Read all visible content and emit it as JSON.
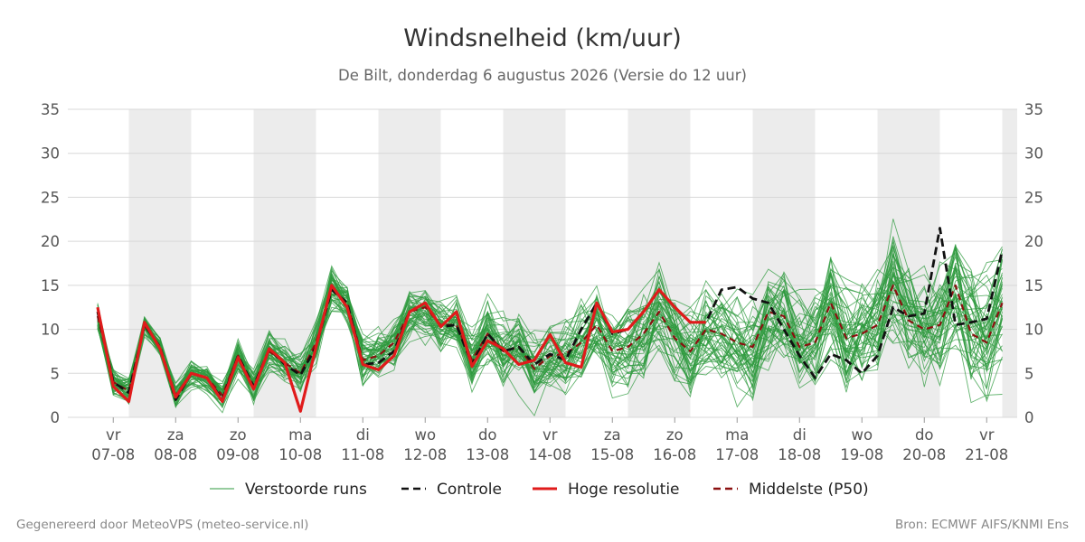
{
  "chart_data": {
    "type": "line",
    "title": "Windsnelheid (km/uur)",
    "subtitle": "De Bilt, donderdag  6 augustus 2026 (Versie do 12 uur)",
    "ylim": [
      0,
      35
    ],
    "yticks": [
      0,
      5,
      10,
      15,
      20,
      25,
      30,
      35
    ],
    "grid": true,
    "legend_position": "bottom",
    "day_ticks": [
      {
        "day": "vr",
        "date": "07-08"
      },
      {
        "day": "za",
        "date": "08-08"
      },
      {
        "day": "zo",
        "date": "09-08"
      },
      {
        "day": "ma",
        "date": "10-08"
      },
      {
        "day": "di",
        "date": "11-08"
      },
      {
        "day": "wo",
        "date": "12-08"
      },
      {
        "day": "do",
        "date": "13-08"
      },
      {
        "day": "vr",
        "date": "14-08"
      },
      {
        "day": "za",
        "date": "15-08"
      },
      {
        "day": "zo",
        "date": "16-08"
      },
      {
        "day": "ma",
        "date": "17-08"
      },
      {
        "day": "di",
        "date": "18-08"
      },
      {
        "day": "wo",
        "date": "19-08"
      },
      {
        "day": "do",
        "date": "20-08"
      },
      {
        "day": "vr",
        "date": "21-08"
      }
    ],
    "x_start": "2026-08-06 12:00",
    "x_step_hours": 6,
    "series": [
      {
        "name": "Controle",
        "color": "#111111",
        "style": "dashed",
        "values": [
          12.0,
          4.0,
          2.8,
          10.5,
          8.0,
          2.0,
          5.0,
          4.5,
          2.0,
          7.0,
          3.5,
          7.8,
          6.0,
          4.8,
          8.0,
          14.5,
          13.0,
          6.0,
          6.2,
          7.5,
          12.0,
          13.0,
          10.3,
          10.5,
          6.0,
          9.5,
          7.5,
          8.0,
          6.0,
          7.2,
          6.5,
          10.0,
          13.0,
          9.5,
          10.0,
          12.0,
          14.5,
          12.5,
          10.8,
          10.8,
          14.5,
          14.8,
          13.5,
          13.0,
          10.0,
          7.0,
          4.5,
          7.2,
          6.5,
          5.0,
          7.0,
          12.5,
          11.5,
          11.8,
          21.5,
          10.5,
          10.8,
          11.2,
          19.0
        ]
      },
      {
        "name": "Hoge resolutie",
        "color": "#e01b1b",
        "style": "solid",
        "values": [
          12.5,
          3.5,
          1.8,
          10.8,
          7.8,
          2.3,
          5.0,
          4.5,
          1.8,
          6.8,
          3.2,
          7.8,
          6.2,
          0.7,
          8.0,
          15.0,
          12.5,
          6.0,
          5.4,
          7.0,
          12.0,
          13.0,
          10.3,
          12.0,
          5.8,
          8.7,
          7.8,
          6.0,
          6.5,
          9.4,
          6.2,
          5.7,
          13.0,
          9.7,
          10.0,
          12.0,
          14.5,
          12.5,
          10.8,
          10.8
        ]
      },
      {
        "name": "Middelste (P50)",
        "color": "#8b1010",
        "style": "dashed",
        "values": [
          11.5,
          4.0,
          3.0,
          10.5,
          8.0,
          2.5,
          5.0,
          4.5,
          2.5,
          7.0,
          3.5,
          7.5,
          6.2,
          5.0,
          8.5,
          14.5,
          13.0,
          6.5,
          7.0,
          8.5,
          12.0,
          12.5,
          10.5,
          10.5,
          6.5,
          9.5,
          7.5,
          8.0,
          5.5,
          7.0,
          7.2,
          8.5,
          10.5,
          7.5,
          8.0,
          9.5,
          12.0,
          9.0,
          7.5,
          10.0,
          9.5,
          8.5,
          8.0,
          12.0,
          11.5,
          8.0,
          8.5,
          13.0,
          9.0,
          9.5,
          10.5,
          15.0,
          11.0,
          10.0,
          10.5,
          15.0,
          9.5,
          8.5,
          13.0
        ]
      },
      {
        "name": "Verstoorde runs",
        "color": "#2e9a3e",
        "style": "solid",
        "member_count": 50,
        "spread": "ensemble"
      }
    ]
  },
  "legend": [
    {
      "label": "Verstoorde runs",
      "color": "#2e9a3e",
      "style": "thin"
    },
    {
      "label": "Controle",
      "color": "#111111",
      "style": "dashed"
    },
    {
      "label": "Hoge resolutie",
      "color": "#e01b1b",
      "style": "thick"
    },
    {
      "label": "Middelste (P50)",
      "color": "#8b1010",
      "style": "dashed"
    }
  ],
  "footer": {
    "left": "Gegenereerd door MeteoVPS (meteo-service.nl)",
    "right": "Bron: ECMWF AIFS/KNMI Ens"
  }
}
